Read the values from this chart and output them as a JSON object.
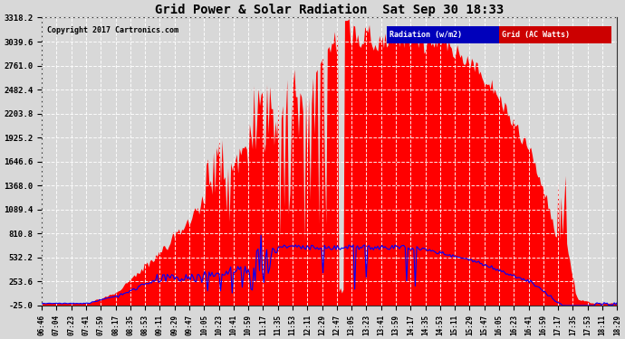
{
  "title": "Grid Power & Solar Radiation  Sat Sep 30 18:33",
  "copyright": "Copyright 2017 Cartronics.com",
  "background_color": "#d8d8d8",
  "plot_bg_color": "#d8d8d8",
  "yticks": [
    -25.0,
    253.6,
    532.2,
    810.8,
    1089.4,
    1368.0,
    1646.6,
    1925.2,
    2203.8,
    2482.4,
    2761.0,
    3039.6,
    3318.2
  ],
  "ymin": -25.0,
  "ymax": 3318.2,
  "grid_color": "#aaaaaa",
  "radiation_color": "#ff0000",
  "grid_power_color": "#0000ff",
  "legend_radiation_label": "Radiation (w/m2)",
  "legend_grid_label": "Grid (AC Watts)",
  "xtick_labels": [
    "06:46",
    "07:04",
    "07:23",
    "07:41",
    "07:59",
    "08:17",
    "08:35",
    "08:53",
    "09:11",
    "09:29",
    "09:47",
    "10:05",
    "10:23",
    "10:41",
    "10:59",
    "11:17",
    "11:35",
    "11:53",
    "12:11",
    "12:29",
    "12:47",
    "13:05",
    "13:23",
    "13:41",
    "13:59",
    "14:17",
    "14:35",
    "14:53",
    "15:11",
    "15:29",
    "15:47",
    "16:05",
    "16:23",
    "16:41",
    "16:59",
    "17:17",
    "17:35",
    "17:53",
    "18:11",
    "18:29"
  ]
}
